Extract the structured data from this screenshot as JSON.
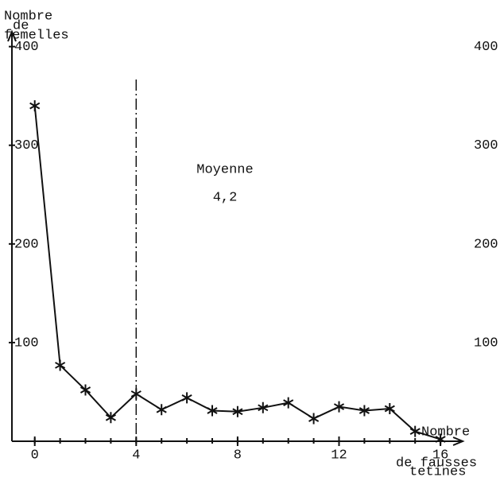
{
  "chart_data": {
    "type": "line",
    "y_label": [
      "Nombre",
      "de",
      "femelles"
    ],
    "x_label": [
      "Nombre",
      "de fausses",
      "tetines"
    ],
    "x": [
      0,
      1,
      2,
      3,
      4,
      5,
      6,
      7,
      8,
      9,
      10,
      11,
      12,
      13,
      14,
      15,
      16
    ],
    "series": [
      {
        "color": "#111",
        "values": [
          340,
          77,
          52,
          24,
          48,
          32,
          44,
          31,
          30,
          34,
          39,
          23,
          35,
          31,
          33,
          10,
          2
        ]
      }
    ],
    "xlim": [
      -0.9,
      16.5
    ],
    "xticks": [
      0,
      4,
      8,
      12,
      16
    ],
    "ylim": [
      0,
      415
    ],
    "yticks": [
      100,
      200,
      300,
      400
    ],
    "y2lim": [
      0,
      415
    ],
    "y2ticks": [
      100,
      200,
      300,
      400
    ],
    "mean_line": 4,
    "annotation": [
      "Moyenne",
      "4,2"
    ]
  }
}
